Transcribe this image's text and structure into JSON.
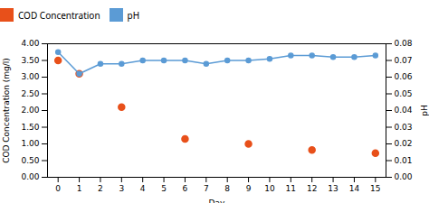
{
  "chart_data": {
    "type": "line",
    "xlabel": "Day",
    "ylabel": "COD Concentration (mg/l)",
    "y2label": "pH",
    "legend": "top",
    "xlim": [
      -0.5,
      15.5
    ],
    "xticks": [
      0,
      1,
      2,
      3,
      4,
      5,
      6,
      7,
      8,
      9,
      10,
      11,
      12,
      13,
      14,
      15
    ],
    "ylim": [
      0.0,
      4.0
    ],
    "yticks": [
      {
        "value": 0.0,
        "label": "0.00"
      },
      {
        "value": 0.5,
        "label": "0.50"
      },
      {
        "value": 1.0,
        "label": "1.00"
      },
      {
        "value": 1.5,
        "label": "1.50"
      },
      {
        "value": 2.0,
        "label": "2.00"
      },
      {
        "value": 2.5,
        "label": "2.50"
      },
      {
        "value": 3.0,
        "label": "3.00"
      },
      {
        "value": 3.5,
        "label": "3.50"
      },
      {
        "value": 4.0,
        "label": "4.00"
      }
    ],
    "y2lim": [
      0.0,
      0.08
    ],
    "y2ticks": [
      {
        "value": 0.0,
        "label": "0.00"
      },
      {
        "value": 0.01,
        "label": "0.01"
      },
      {
        "value": 0.02,
        "label": "0.02"
      },
      {
        "value": 0.03,
        "label": "0.03"
      },
      {
        "value": 0.04,
        "label": "0.04"
      },
      {
        "value": 0.05,
        "label": "0.05"
      },
      {
        "value": 0.06,
        "label": "0.06"
      },
      {
        "value": 0.07,
        "label": "0.07"
      },
      {
        "value": 0.08,
        "label": "0.08"
      }
    ],
    "series": [
      {
        "name": "COD Concentration",
        "type": "scatter",
        "color": "#e8501a",
        "marker": "o",
        "x": [
          0,
          1,
          3,
          6,
          9,
          12,
          15
        ],
        "values": [
          3.5,
          3.1,
          2.1,
          1.15,
          1.0,
          0.82,
          0.72
        ]
      },
      {
        "name": "pH",
        "type": "line",
        "color": "#5b9bd5",
        "marker": "o",
        "axis": "y2",
        "x": [
          0,
          1,
          2,
          3,
          4,
          5,
          6,
          7,
          8,
          9,
          10,
          11,
          12,
          13,
          14,
          15
        ],
        "values": [
          0.075,
          0.062,
          0.068,
          0.068,
          0.07,
          0.07,
          0.07,
          0.068,
          0.07,
          0.07,
          0.071,
          0.073,
          0.073,
          0.072,
          0.072,
          0.073
        ]
      }
    ]
  }
}
